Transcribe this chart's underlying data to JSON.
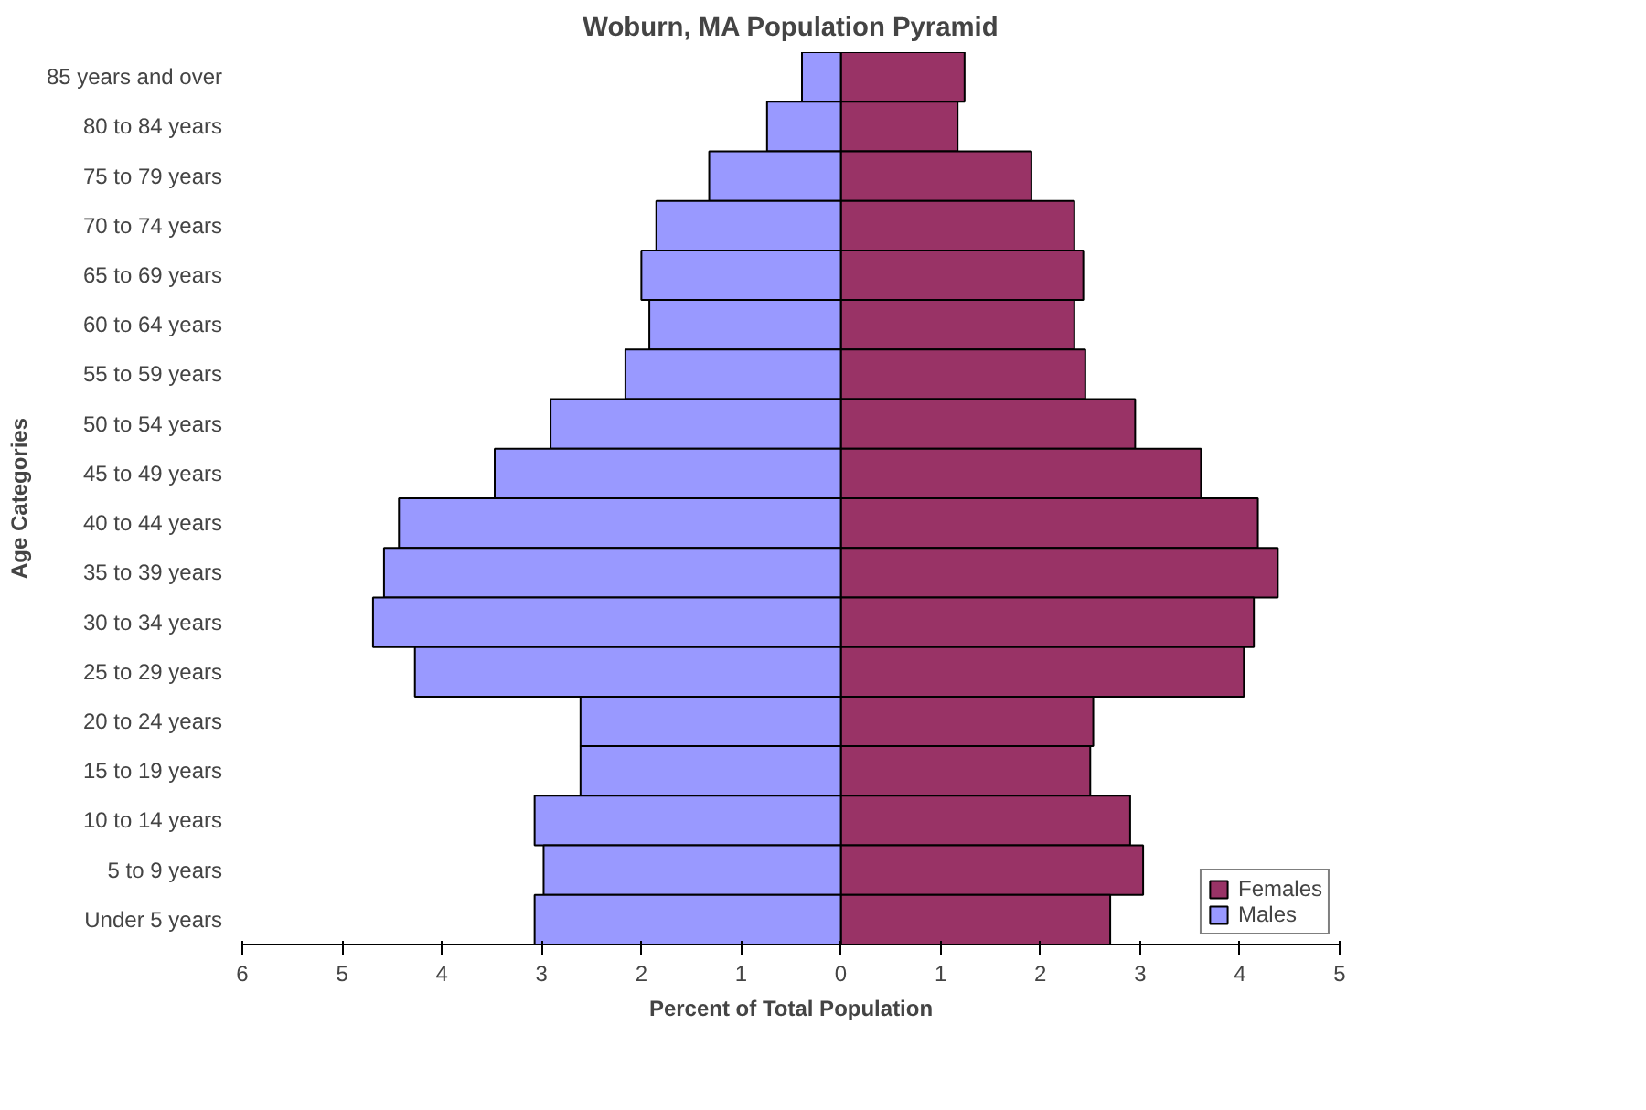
{
  "chart_data": {
    "type": "bar",
    "orientation": "horizontal",
    "title": "Woburn, MA Population Pyramid",
    "xlabel": "Percent of Total Population",
    "ylabel": "Age Categories",
    "categories": [
      "85 years and over",
      "80 to 84 years",
      "75 to 79 years",
      "70 to 74 years",
      "65 to 69 years",
      "60 to 64 years",
      "55 to 59 years",
      "50 to 54 years",
      "45 to 49 years",
      "40 to 44 years",
      "35 to 39 years",
      "30 to 34 years",
      "25 to 29 years",
      "20 to 24 years",
      "15 to 19 years",
      "10 to 14 years",
      "5 to 9 years",
      "Under 5 years"
    ],
    "series": [
      {
        "name": "Females",
        "color": "#993366",
        "values": [
          1.24,
          1.17,
          1.91,
          2.34,
          2.43,
          2.34,
          2.45,
          2.95,
          3.61,
          4.18,
          4.38,
          4.14,
          4.04,
          2.53,
          2.5,
          2.9,
          3.03,
          2.7
        ]
      },
      {
        "name": "Males",
        "color": "#9999ff",
        "values": [
          -0.39,
          -0.74,
          -1.32,
          -1.85,
          -2.0,
          -1.92,
          -2.16,
          -2.91,
          -3.47,
          -4.43,
          -4.58,
          -4.69,
          -4.27,
          -2.61,
          -2.61,
          -3.07,
          -2.98,
          -3.07
        ]
      }
    ],
    "xlim": [
      -6,
      5
    ],
    "xticks": [
      {
        "value": -6,
        "label": "6"
      },
      {
        "value": -5,
        "label": "5"
      },
      {
        "value": -4,
        "label": "4"
      },
      {
        "value": -3,
        "label": "3"
      },
      {
        "value": -2,
        "label": "2"
      },
      {
        "value": -1,
        "label": "1"
      },
      0,
      1,
      2,
      3,
      4,
      5
    ],
    "grid": false,
    "legend": "right",
    "stacked": true
  }
}
